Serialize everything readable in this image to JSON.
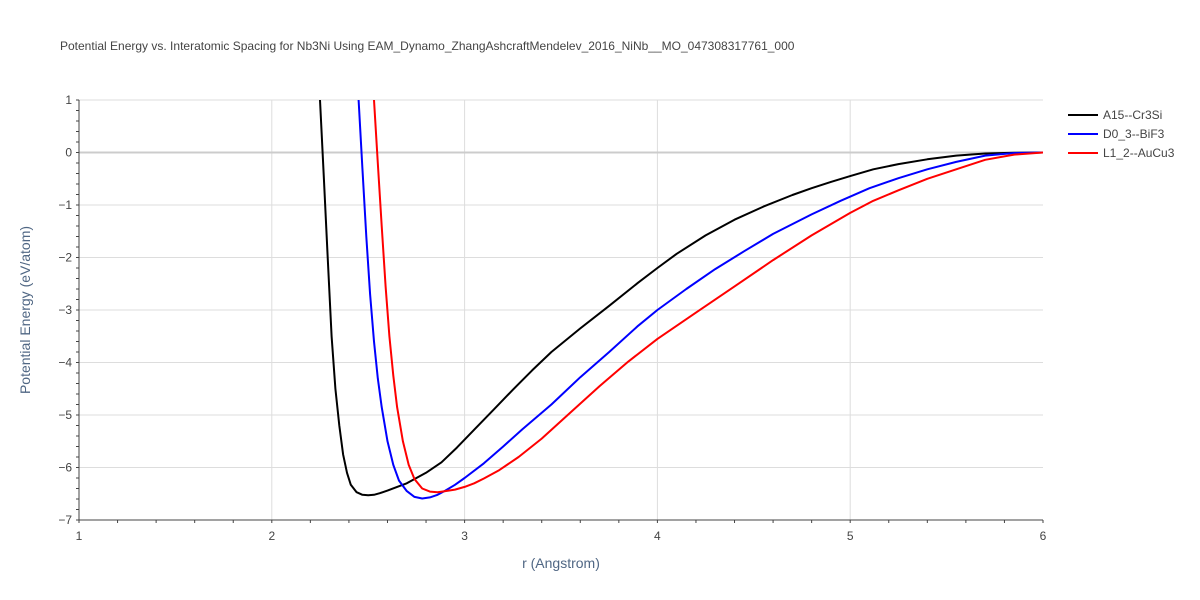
{
  "chart_data": {
    "type": "line",
    "title": "Potential Energy vs. Interatomic Spacing for Nb3Ni Using EAM_Dynamo_ZhangAshcraftMendelev_2016_NiNb__MO_047308317761_000",
    "xlabel": "r (Angstrom)",
    "ylabel": "Potential Energy (eV/atom)",
    "xlim": [
      1,
      6
    ],
    "ylim": [
      -7,
      1
    ],
    "xticks": [
      "1",
      "2",
      "3",
      "4",
      "5",
      "6"
    ],
    "yticks": [
      "1",
      "0",
      "−1",
      "−2",
      "−3",
      "−4",
      "−5",
      "−6",
      "−7"
    ],
    "grid": true,
    "legend_position": "top-right outside",
    "series": [
      {
        "name": "A15--Cr3Si",
        "color": "#000000",
        "x": [
          2.25,
          2.27,
          2.29,
          2.31,
          2.33,
          2.35,
          2.37,
          2.39,
          2.41,
          2.44,
          2.47,
          2.5,
          2.53,
          2.56,
          2.6,
          2.65,
          2.7,
          2.75,
          2.8,
          2.88,
          2.96,
          3.05,
          3.15,
          3.25,
          3.35,
          3.45,
          3.6,
          3.75,
          3.9,
          4.0,
          4.1,
          4.25,
          4.4,
          4.55,
          4.7,
          4.8,
          4.9,
          5.0,
          5.12,
          5.25,
          5.4,
          5.55,
          5.7,
          5.85,
          6.0
        ],
        "y": [
          1.0,
          -0.5,
          -2.0,
          -3.5,
          -4.5,
          -5.2,
          -5.75,
          -6.1,
          -6.33,
          -6.47,
          -6.52,
          -6.53,
          -6.52,
          -6.49,
          -6.44,
          -6.37,
          -6.3,
          -6.2,
          -6.1,
          -5.9,
          -5.62,
          -5.28,
          -4.9,
          -4.52,
          -4.15,
          -3.8,
          -3.35,
          -2.92,
          -2.48,
          -2.2,
          -1.93,
          -1.58,
          -1.28,
          -1.03,
          -0.81,
          -0.68,
          -0.56,
          -0.45,
          -0.32,
          -0.22,
          -0.13,
          -0.06,
          -0.02,
          -0.005,
          0.0
        ]
      },
      {
        "name": "D0_3--BiF3",
        "color": "#0000ff",
        "x": [
          2.45,
          2.47,
          2.49,
          2.51,
          2.53,
          2.55,
          2.57,
          2.6,
          2.63,
          2.66,
          2.7,
          2.74,
          2.78,
          2.82,
          2.86,
          2.9,
          2.95,
          3.0,
          3.1,
          3.2,
          3.3,
          3.45,
          3.6,
          3.75,
          3.9,
          4.0,
          4.15,
          4.3,
          4.45,
          4.6,
          4.8,
          4.95,
          5.1,
          5.25,
          5.4,
          5.55,
          5.7,
          5.85,
          6.0
        ],
        "y": [
          1.0,
          -0.3,
          -1.6,
          -2.7,
          -3.6,
          -4.3,
          -4.85,
          -5.5,
          -5.95,
          -6.25,
          -6.45,
          -6.56,
          -6.59,
          -6.57,
          -6.52,
          -6.44,
          -6.33,
          -6.2,
          -5.92,
          -5.6,
          -5.27,
          -4.8,
          -4.28,
          -3.8,
          -3.3,
          -3.0,
          -2.6,
          -2.22,
          -1.88,
          -1.55,
          -1.18,
          -0.92,
          -0.68,
          -0.49,
          -0.32,
          -0.18,
          -0.06,
          -0.01,
          0.0
        ]
      },
      {
        "name": "L1_2--AuCu3",
        "color": "#ff0000",
        "x": [
          2.53,
          2.55,
          2.57,
          2.59,
          2.61,
          2.63,
          2.65,
          2.68,
          2.71,
          2.74,
          2.78,
          2.82,
          2.86,
          2.9,
          2.95,
          3.0,
          3.05,
          3.1,
          3.18,
          3.28,
          3.4,
          3.55,
          3.7,
          3.85,
          4.0,
          4.2,
          4.4,
          4.6,
          4.8,
          5.0,
          5.12,
          5.25,
          5.4,
          5.55,
          5.7,
          5.85,
          6.0
        ],
        "y": [
          1.0,
          -0.2,
          -1.4,
          -2.55,
          -3.5,
          -4.25,
          -4.85,
          -5.5,
          -5.95,
          -6.22,
          -6.4,
          -6.46,
          -6.47,
          -6.45,
          -6.42,
          -6.37,
          -6.3,
          -6.21,
          -6.05,
          -5.8,
          -5.45,
          -4.95,
          -4.45,
          -3.98,
          -3.55,
          -3.05,
          -2.55,
          -2.05,
          -1.58,
          -1.15,
          -0.92,
          -0.72,
          -0.5,
          -0.32,
          -0.14,
          -0.04,
          0.0
        ]
      }
    ]
  }
}
